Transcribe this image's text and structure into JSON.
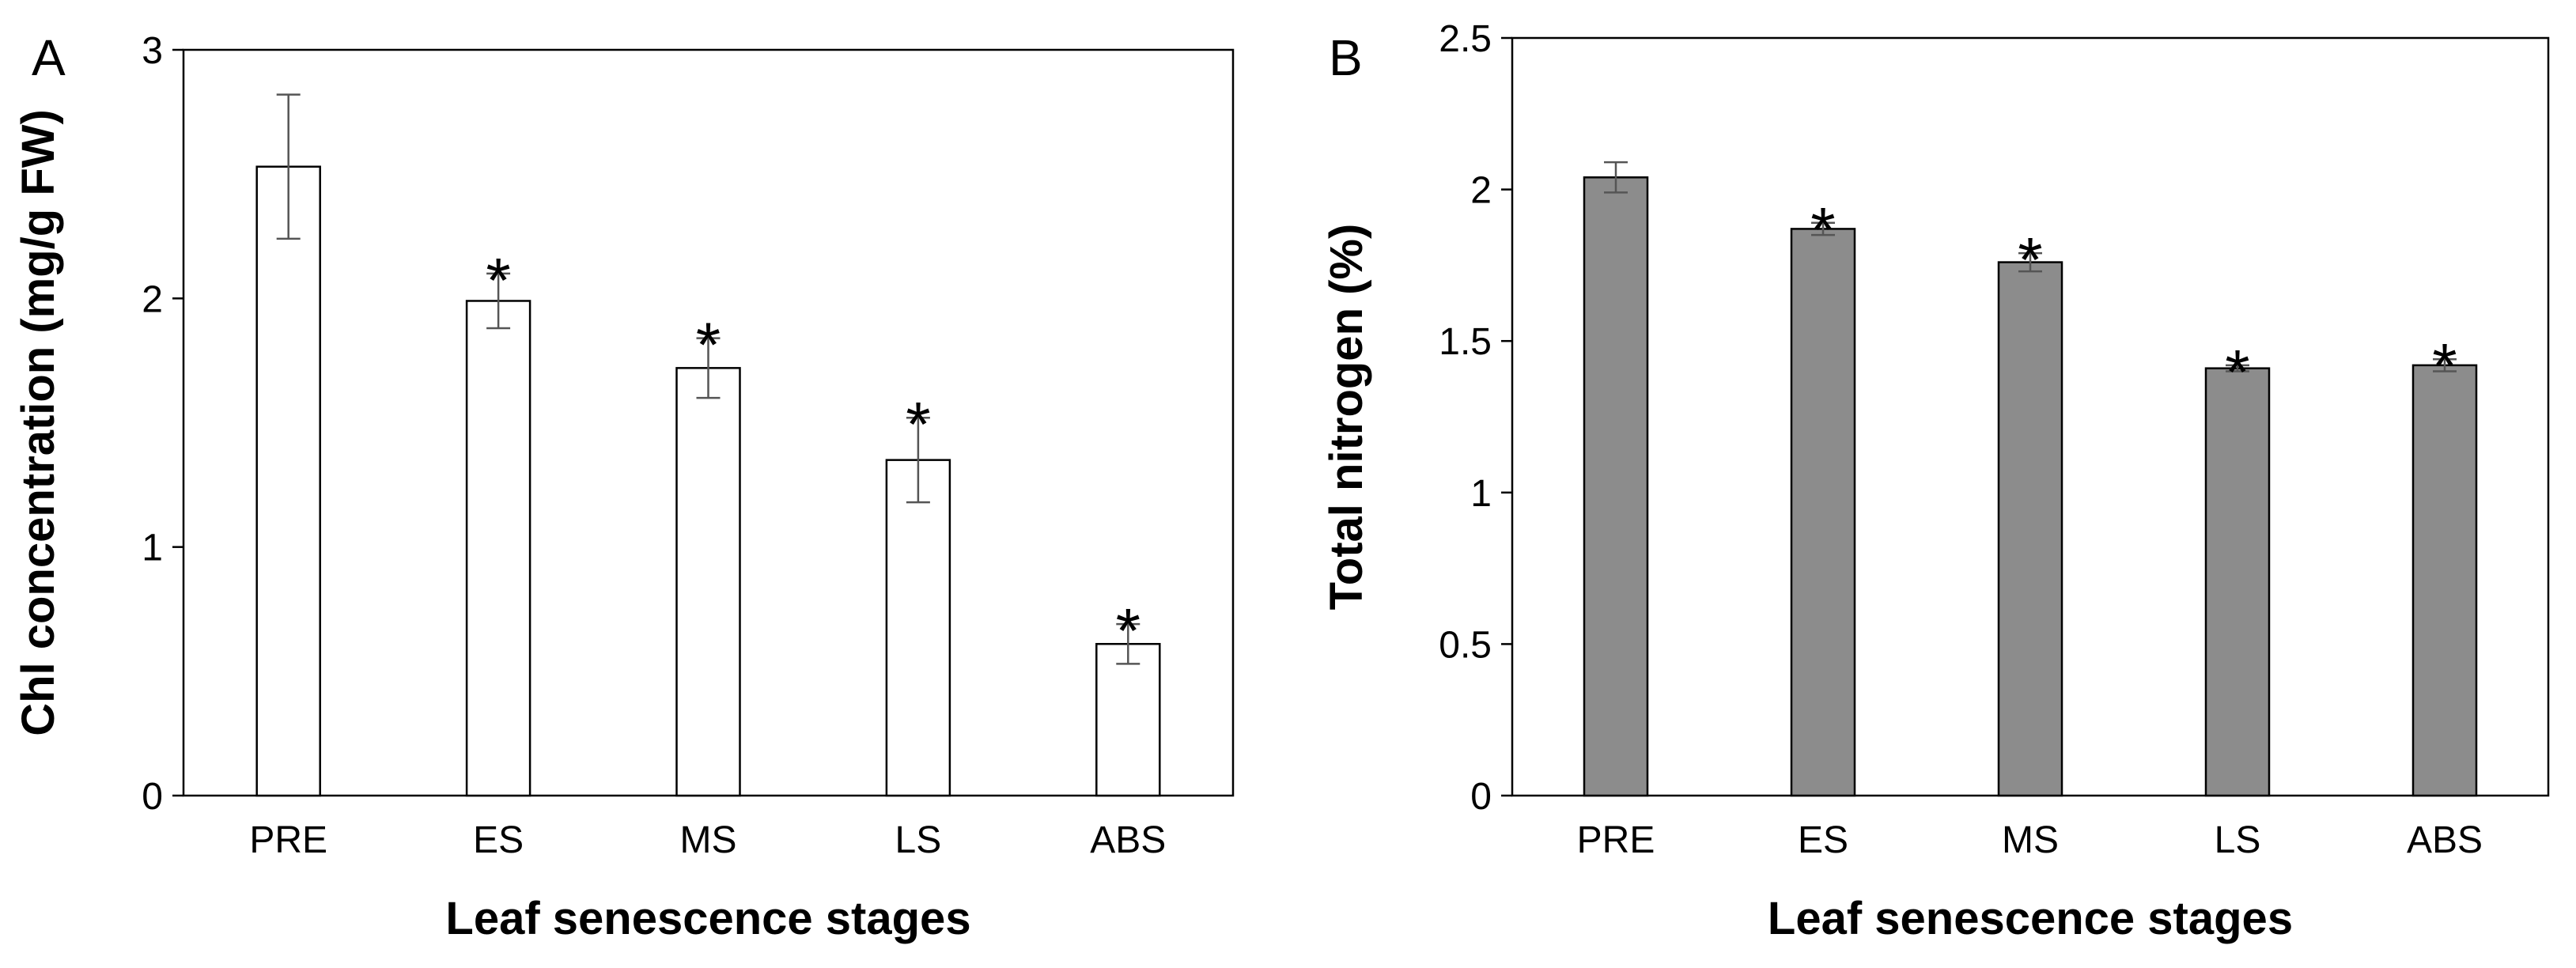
{
  "chart_data": [
    {
      "type": "bar",
      "panel_label": "A",
      "categories": [
        "PRE",
        "ES",
        "MS",
        "LS",
        "ABS"
      ],
      "values": [
        2.53,
        1.99,
        1.72,
        1.35,
        0.61
      ],
      "errors": [
        0.29,
        0.11,
        0.12,
        0.17,
        0.08
      ],
      "significant": [
        false,
        true,
        true,
        true,
        true
      ],
      "significance_marker": "*",
      "xlabel": "Leaf senescence stages",
      "ylabel": "Chl concentration (mg/g FW)",
      "ylim": [
        0,
        3
      ],
      "yticks": [
        0,
        1,
        2,
        3
      ],
      "ytick_labels": [
        "0",
        "1",
        "2",
        "3"
      ],
      "bar_fill": "#ffffff",
      "bar_stroke": "#000000"
    },
    {
      "type": "bar",
      "panel_label": "B",
      "categories": [
        "PRE",
        "ES",
        "MS",
        "LS",
        "ABS"
      ],
      "values": [
        2.04,
        1.87,
        1.76,
        1.41,
        1.42
      ],
      "errors": [
        0.05,
        0.02,
        0.03,
        0.01,
        0.02
      ],
      "significant": [
        false,
        true,
        true,
        true,
        true
      ],
      "significance_marker": "*",
      "xlabel": "Leaf senescence stages",
      "ylabel": "Total nitrogen (%)",
      "ylim": [
        0,
        2.5
      ],
      "yticks": [
        0,
        0.5,
        1,
        1.5,
        2,
        2.5
      ],
      "ytick_labels": [
        "0",
        "0.5",
        "1",
        "1.5",
        "2",
        "2.5"
      ],
      "bar_fill": "#8c8c8c",
      "bar_stroke": "#000000"
    }
  ]
}
